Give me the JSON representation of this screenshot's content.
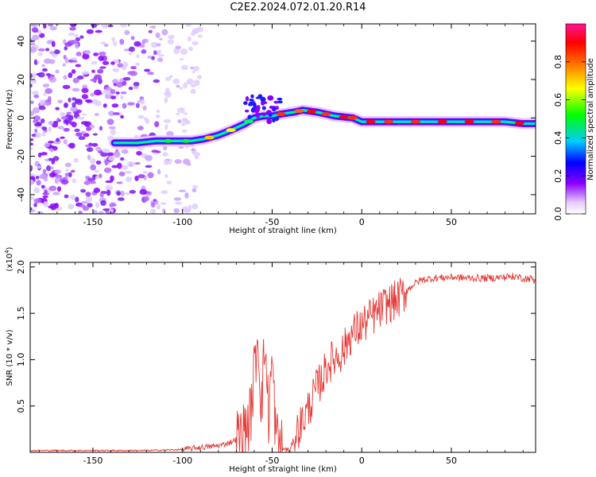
{
  "title": "C2E2.2024.072.01.20.R14",
  "chart_data": [
    {
      "type": "heatmap",
      "name": "spectrogram",
      "xlabel": "Height of straight line (km)",
      "ylabel": "Frequency (Hz)",
      "xlim": [
        -185,
        97
      ],
      "ylim": [
        -50,
        49
      ],
      "xticks": [
        -150,
        -100,
        -50,
        0,
        50
      ],
      "yticks": [
        -40,
        -20,
        0,
        20,
        40
      ],
      "ridge": {
        "x": [
          -138,
          -125,
          -115,
          -105,
          -95,
          -88,
          -80,
          -72,
          -65,
          -60,
          -55,
          -50,
          -45,
          -38,
          -33,
          -25,
          -15,
          -5,
          0,
          10,
          20,
          30,
          50,
          70,
          80,
          90,
          97
        ],
        "y": [
          -13,
          -13,
          -12,
          -12,
          -12,
          -11,
          -9,
          -6,
          -3,
          0,
          1,
          1,
          2,
          3,
          4,
          3,
          1,
          0,
          -2,
          -2,
          -2,
          -2,
          -2,
          -2,
          -2,
          -3,
          -3
        ]
      },
      "colorbar": {
        "label": "Normalized spectral amplitude",
        "range": [
          0,
          1
        ],
        "ticks": [
          0.0,
          0.2,
          0.4,
          0.6,
          0.8
        ],
        "tick_labels": [
          "0.0",
          "0.2",
          "0.4",
          "0.6",
          "0.8"
        ]
      }
    },
    {
      "type": "line",
      "name": "snr",
      "xlabel": "Height of straight line (km)",
      "ylabel": "SNR (10 * v/v)",
      "y_multiplier": "(x10",
      "y_multiplier_exp": "4",
      "xlim": [
        -185,
        97
      ],
      "ylim": [
        0,
        2.05
      ],
      "xticks": [
        -150,
        -100,
        -50,
        0,
        50
      ],
      "yticks": [
        0.5,
        1.0,
        1.5,
        2.0
      ],
      "ytick_labels": [
        "0.5",
        "1.0",
        "1.5",
        "2.0"
      ],
      "color": "#e53935",
      "series": [
        {
          "name": "SNR",
          "x": [
            -185,
            -150,
            -120,
            -100,
            -92,
            -85,
            -78,
            -72,
            -66,
            -62,
            -58,
            -56,
            -54,
            -52,
            -50,
            -48,
            -46,
            -44,
            -42,
            -40,
            -37,
            -34,
            -31,
            -28,
            -25,
            -22,
            -19,
            -16,
            -13,
            -10,
            -7,
            -4,
            -1,
            2,
            5,
            8,
            11,
            14,
            17,
            20,
            24,
            28,
            33,
            40,
            50,
            60,
            70,
            80,
            85,
            90,
            97
          ],
          "y": [
            0.02,
            0.02,
            0.02,
            0.03,
            0.05,
            0.06,
            0.08,
            0.12,
            0.2,
            0.4,
            1.3,
            0.5,
            1.2,
            0.4,
            1.0,
            0.2,
            0.06,
            0.04,
            0.03,
            0.02,
            0.2,
            0.3,
            0.42,
            0.55,
            0.7,
            0.8,
            0.95,
            1.0,
            1.05,
            1.1,
            1.25,
            1.3,
            1.35,
            1.4,
            1.45,
            1.5,
            1.55,
            1.6,
            1.62,
            1.65,
            1.72,
            1.8,
            1.86,
            1.88,
            1.89,
            1.88,
            1.88,
            1.89,
            1.9,
            1.88,
            1.87
          ]
        }
      ]
    }
  ]
}
